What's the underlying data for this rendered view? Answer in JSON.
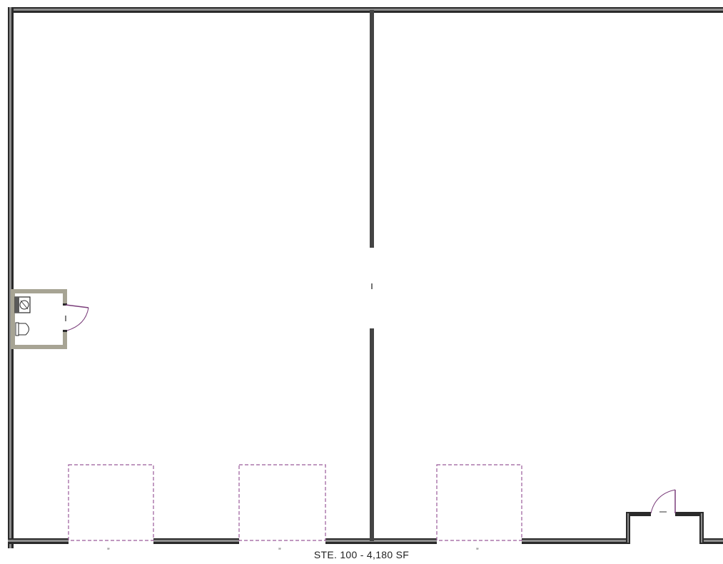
{
  "suite_label": "STE. 100 - 4,180 SF",
  "door_marks": [
    "”",
    "”",
    "”"
  ],
  "colors": {
    "wall_outer": "#2a2a2a",
    "wall_inner": "#6e6e6e",
    "restroom_fill": "#a7a494",
    "door_swing": "#7a3d7a",
    "overhead_door": "#9a5a9a"
  }
}
